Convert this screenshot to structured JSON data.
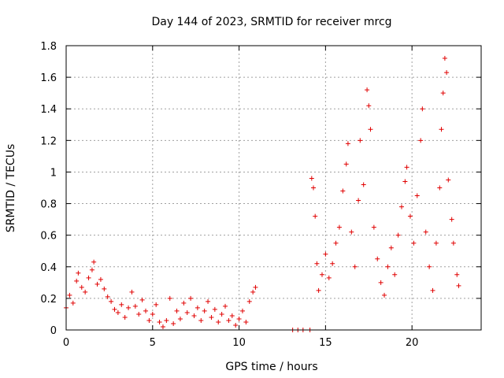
{
  "chart_data": {
    "type": "scatter",
    "title": "Day 144 of 2023, SRMTID for receiver mrcg",
    "xlabel": "GPS time / hours",
    "ylabel": "SRMTID / TECUs",
    "xlim": [
      0,
      24
    ],
    "ylim": [
      0,
      1.8
    ],
    "x_ticks": [
      0,
      5,
      10,
      15,
      20
    ],
    "x_tick_labels": [
      "0",
      "5",
      "10",
      "15",
      "20"
    ],
    "y_ticks": [
      0,
      0.2,
      0.4,
      0.6,
      0.8,
      1.0,
      1.2,
      1.4,
      1.6,
      1.8
    ],
    "y_tick_labels": [
      "0",
      "0.2",
      "0.4",
      "0.6",
      "0.8",
      "1",
      "1.2",
      "1.4",
      "1.6",
      "1.8"
    ],
    "grid": true,
    "marker": "plus",
    "color": "#e00000",
    "series": [
      {
        "name": "SRMTID",
        "points": [
          [
            0.0,
            0.14
          ],
          [
            0.2,
            0.22
          ],
          [
            0.4,
            0.17
          ],
          [
            0.6,
            0.31
          ],
          [
            0.7,
            0.36
          ],
          [
            0.9,
            0.27
          ],
          [
            1.1,
            0.24
          ],
          [
            1.3,
            0.33
          ],
          [
            1.5,
            0.38
          ],
          [
            1.6,
            0.43
          ],
          [
            1.8,
            0.29
          ],
          [
            2.0,
            0.32
          ],
          [
            2.2,
            0.26
          ],
          [
            2.4,
            0.21
          ],
          [
            2.6,
            0.18
          ],
          [
            2.8,
            0.13
          ],
          [
            3.0,
            0.11
          ],
          [
            3.2,
            0.16
          ],
          [
            3.4,
            0.08
          ],
          [
            3.6,
            0.14
          ],
          [
            3.8,
            0.24
          ],
          [
            4.0,
            0.15
          ],
          [
            4.2,
            0.1
          ],
          [
            4.4,
            0.19
          ],
          [
            4.6,
            0.12
          ],
          [
            4.8,
            0.06
          ],
          [
            5.0,
            0.1
          ],
          [
            5.2,
            0.16
          ],
          [
            5.4,
            0.05
          ],
          [
            5.6,
            0.02
          ],
          [
            5.8,
            0.06
          ],
          [
            6.0,
            0.2
          ],
          [
            6.2,
            0.04
          ],
          [
            6.4,
            0.12
          ],
          [
            6.6,
            0.07
          ],
          [
            6.8,
            0.17
          ],
          [
            7.0,
            0.11
          ],
          [
            7.2,
            0.2
          ],
          [
            7.4,
            0.09
          ],
          [
            7.6,
            0.14
          ],
          [
            7.8,
            0.06
          ],
          [
            8.0,
            0.12
          ],
          [
            8.2,
            0.18
          ],
          [
            8.4,
            0.08
          ],
          [
            8.6,
            0.13
          ],
          [
            8.8,
            0.05
          ],
          [
            9.0,
            0.1
          ],
          [
            9.2,
            0.15
          ],
          [
            9.4,
            0.06
          ],
          [
            9.6,
            0.09
          ],
          [
            9.8,
            0.03
          ],
          [
            10.0,
            0.07
          ],
          [
            10.2,
            0.12
          ],
          [
            10.4,
            0.05
          ],
          [
            10.6,
            0.18
          ],
          [
            10.8,
            0.24
          ],
          [
            10.95,
            0.27
          ],
          [
            13.1,
            0.0
          ],
          [
            13.4,
            0.0
          ],
          [
            13.7,
            0.0
          ],
          [
            14.1,
            0.0
          ],
          [
            14.2,
            0.96
          ],
          [
            14.3,
            0.9
          ],
          [
            14.4,
            0.72
          ],
          [
            14.5,
            0.42
          ],
          [
            14.6,
            0.25
          ],
          [
            14.8,
            0.35
          ],
          [
            15.0,
            0.48
          ],
          [
            15.2,
            0.33
          ],
          [
            15.4,
            0.42
          ],
          [
            15.6,
            0.55
          ],
          [
            15.8,
            0.65
          ],
          [
            16.0,
            0.88
          ],
          [
            16.2,
            1.05
          ],
          [
            16.3,
            1.18
          ],
          [
            16.5,
            0.62
          ],
          [
            16.7,
            0.4
          ],
          [
            16.9,
            0.82
          ],
          [
            17.0,
            1.2
          ],
          [
            17.2,
            0.92
          ],
          [
            17.4,
            1.52
          ],
          [
            17.5,
            1.42
          ],
          [
            17.6,
            1.27
          ],
          [
            17.8,
            0.65
          ],
          [
            18.0,
            0.45
          ],
          [
            18.2,
            0.3
          ],
          [
            18.4,
            0.22
          ],
          [
            18.6,
            0.4
          ],
          [
            18.8,
            0.52
          ],
          [
            19.0,
            0.35
          ],
          [
            19.2,
            0.6
          ],
          [
            19.4,
            0.78
          ],
          [
            19.6,
            0.94
          ],
          [
            19.7,
            1.03
          ],
          [
            19.9,
            0.72
          ],
          [
            20.1,
            0.55
          ],
          [
            20.3,
            0.85
          ],
          [
            20.5,
            1.2
          ],
          [
            20.6,
            1.4
          ],
          [
            20.8,
            0.62
          ],
          [
            21.0,
            0.4
          ],
          [
            21.2,
            0.25
          ],
          [
            21.4,
            0.55
          ],
          [
            21.6,
            0.9
          ],
          [
            21.7,
            1.27
          ],
          [
            21.8,
            1.5
          ],
          [
            21.9,
            1.72
          ],
          [
            22.0,
            1.63
          ],
          [
            22.1,
            0.95
          ],
          [
            22.3,
            0.7
          ],
          [
            22.4,
            0.55
          ],
          [
            22.6,
            0.35
          ],
          [
            22.7,
            0.28
          ]
        ]
      }
    ]
  }
}
